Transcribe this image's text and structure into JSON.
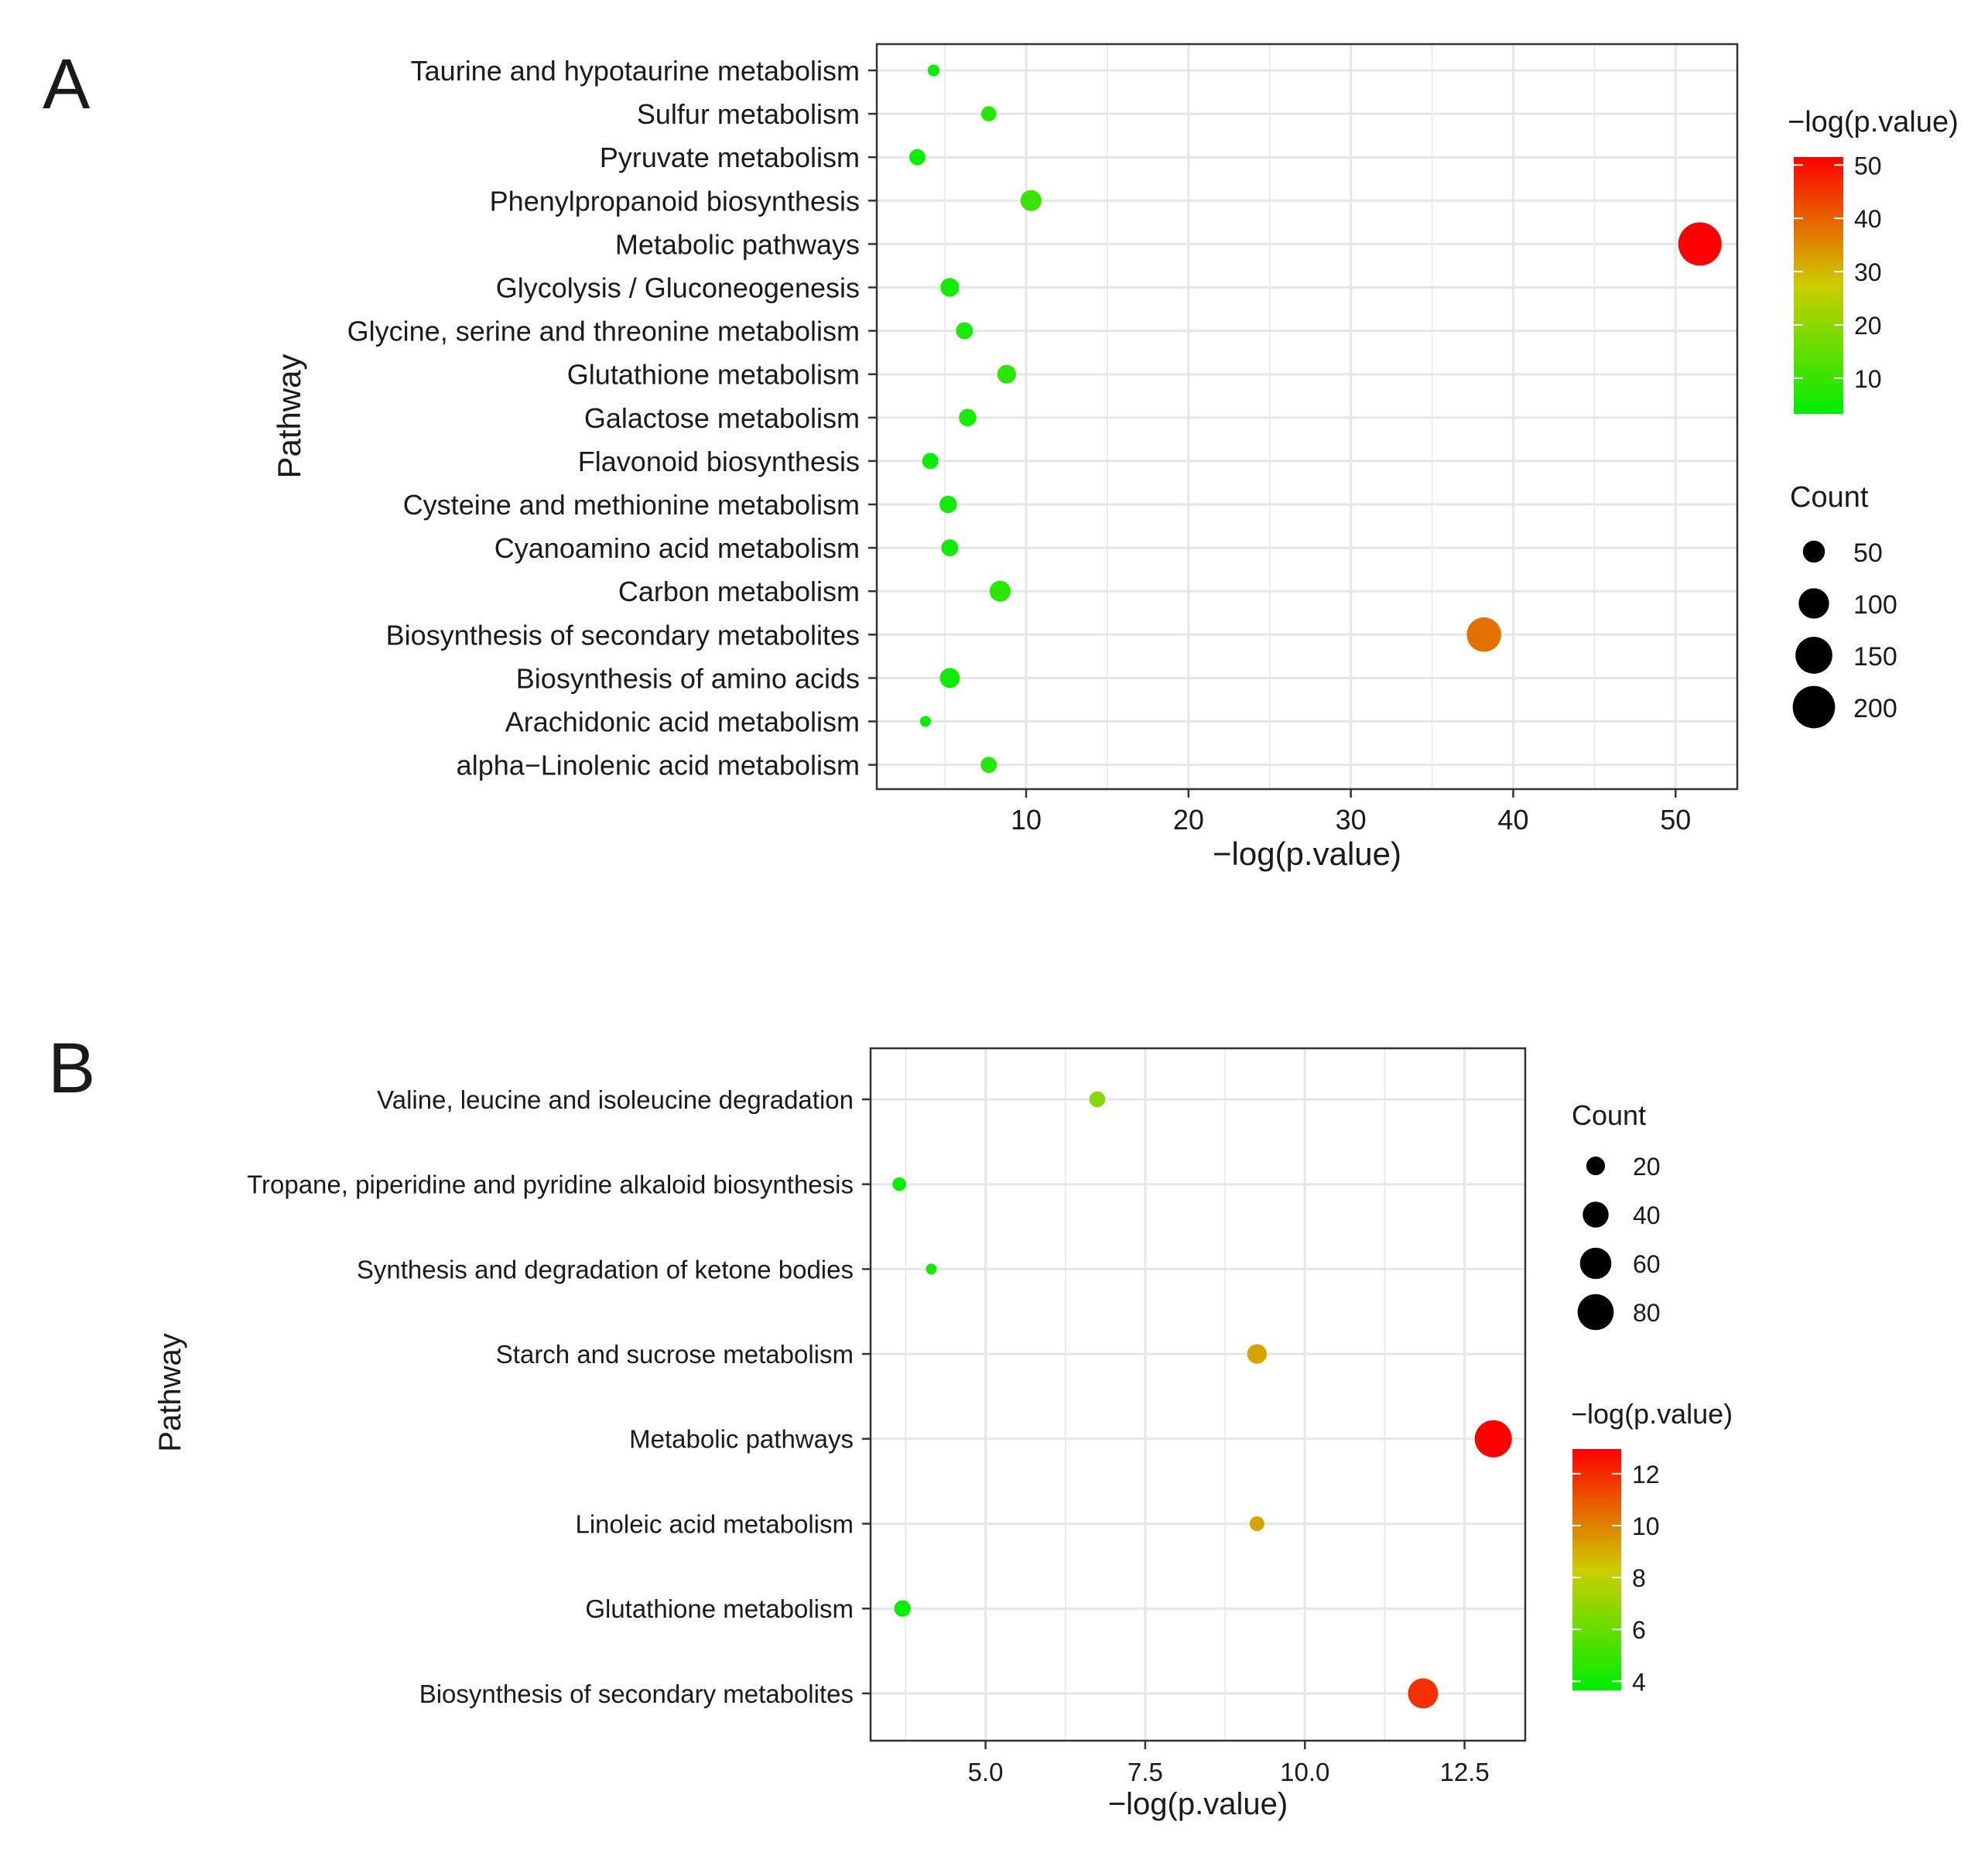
{
  "figure": {
    "panel_labels": [
      "A",
      "B"
    ]
  },
  "colors": {
    "low": "#00ee00",
    "mid": "#cccc00",
    "high": "#ff0000",
    "grid": "#e6e6e6",
    "frame": "#333333"
  },
  "chart_data": [
    {
      "type": "scatter",
      "panel": "A",
      "xlabel": "−log(p.value)",
      "ylabel": "Pathway",
      "xlim": [
        0.8,
        53.8
      ],
      "xticks": [
        10,
        20,
        30,
        40,
        50
      ],
      "xtick_labels": [
        "10",
        "20",
        "30",
        "40",
        "50"
      ],
      "categories": [
        "Taurine and hypotaurine metabolism",
        "Sulfur metabolism",
        "Pyruvate metabolism",
        "Phenylpropanoid biosynthesis",
        "Metabolic pathways",
        "Glycolysis / Gluconeogenesis",
        "Glycine, serine and threonine metabolism",
        "Glutathione metabolism",
        "Galactose metabolism",
        "Flavonoid biosynthesis",
        "Cysteine and methionine metabolism",
        "Cyanoamino acid metabolism",
        "Carbon metabolism",
        "Biosynthesis of secondary metabolites",
        "Biosynthesis of amino acids",
        "Arachidonic acid metabolism",
        "alpha−Linolenic acid metabolism"
      ],
      "points": [
        {
          "pathway": "Taurine and hypotaurine metabolism",
          "x": 4.3,
          "count": 12
        },
        {
          "pathway": "Sulfur metabolism",
          "x": 7.7,
          "count": 22
        },
        {
          "pathway": "Pyruvate metabolism",
          "x": 3.3,
          "count": 25
        },
        {
          "pathway": "Phenylpropanoid biosynthesis",
          "x": 10.3,
          "count": 45
        },
        {
          "pathway": "Metabolic pathways",
          "x": 51.5,
          "count": 210
        },
        {
          "pathway": "Glycolysis / Gluconeogenesis",
          "x": 5.3,
          "count": 35
        },
        {
          "pathway": "Glycine, serine and threonine metabolism",
          "x": 6.2,
          "count": 28
        },
        {
          "pathway": "Glutathione metabolism",
          "x": 8.8,
          "count": 35
        },
        {
          "pathway": "Galactose metabolism",
          "x": 6.4,
          "count": 30
        },
        {
          "pathway": "Flavonoid biosynthesis",
          "x": 4.1,
          "count": 25
        },
        {
          "pathway": "Cysteine and methionine metabolism",
          "x": 5.2,
          "count": 30
        },
        {
          "pathway": "Cyanoamino acid metabolism",
          "x": 5.3,
          "count": 28
        },
        {
          "pathway": "Carbon metabolism",
          "x": 8.4,
          "count": 45
        },
        {
          "pathway": "Biosynthesis of secondary metabolites",
          "x": 38.2,
          "count": 130
        },
        {
          "pathway": "Biosynthesis of amino acids",
          "x": 5.3,
          "count": 40
        },
        {
          "pathway": "Arachidonic acid metabolism",
          "x": 3.8,
          "count": 10
        },
        {
          "pathway": "alpha−Linolenic acid metabolism",
          "x": 7.7,
          "count": 25
        }
      ],
      "color_legend": {
        "title": "−log(p.value)",
        "range": [
          3.3,
          51.5
        ],
        "ticks": [
          10,
          20,
          30,
          40,
          50
        ],
        "tick_labels": [
          "10",
          "20",
          "30",
          "40",
          "50"
        ]
      },
      "size_legend": {
        "title": "Count",
        "values": [
          50,
          100,
          150,
          200
        ],
        "labels": [
          "50",
          "100",
          "150",
          "200"
        ]
      },
      "size_domain": [
        10,
        210
      ],
      "size_range": [
        7,
        28
      ],
      "grid": true,
      "legend_position": "right"
    },
    {
      "type": "scatter",
      "panel": "B",
      "xlabel": "−log(p.value)",
      "ylabel": "Pathway",
      "xlim": [
        3.2,
        13.45
      ],
      "xticks": [
        5.0,
        7.5,
        10.0,
        12.5
      ],
      "xtick_labels": [
        "5.0",
        "7.5",
        "10.0",
        "12.5"
      ],
      "categories": [
        "Valine, leucine and isoleucine degradation",
        "Tropane, piperidine and pyridine alkaloid biosynthesis",
        "Synthesis and degradation of ketone bodies",
        "Starch and sucrose metabolism",
        "Metabolic pathways",
        "Linoleic acid metabolism",
        "Glutathione metabolism",
        "Biosynthesis of secondary metabolites"
      ],
      "points": [
        {
          "pathway": "Valine, leucine and isoleucine degradation",
          "x": 6.75,
          "count": 14
        },
        {
          "pathway": "Tropane, piperidine and pyridine alkaloid biosynthesis",
          "x": 3.65,
          "count": 10
        },
        {
          "pathway": "Synthesis and degradation of ketone bodies",
          "x": 4.15,
          "count": 6
        },
        {
          "pathway": "Starch and sucrose metabolism",
          "x": 9.25,
          "count": 22
        },
        {
          "pathway": "Metabolic pathways",
          "x": 12.95,
          "count": 85
        },
        {
          "pathway": "Linoleic acid metabolism",
          "x": 9.25,
          "count": 12
        },
        {
          "pathway": "Glutathione metabolism",
          "x": 3.7,
          "count": 15
        },
        {
          "pathway": "Biosynthesis of secondary metabolites",
          "x": 11.85,
          "count": 55
        }
      ],
      "color_legend": {
        "title": "−log(p.value)",
        "range": [
          3.65,
          12.95
        ],
        "ticks": [
          4,
          6,
          8,
          10,
          12
        ],
        "tick_labels": [
          "4",
          "6",
          "8",
          "10",
          "12"
        ]
      },
      "size_legend": {
        "title": "Count",
        "values": [
          20,
          40,
          60,
          80
        ],
        "labels": [
          "20",
          "40",
          "60",
          "80"
        ]
      },
      "size_domain": [
        6,
        85
      ],
      "size_range": [
        7,
        24
      ],
      "grid": true,
      "legend_position": "right"
    }
  ]
}
